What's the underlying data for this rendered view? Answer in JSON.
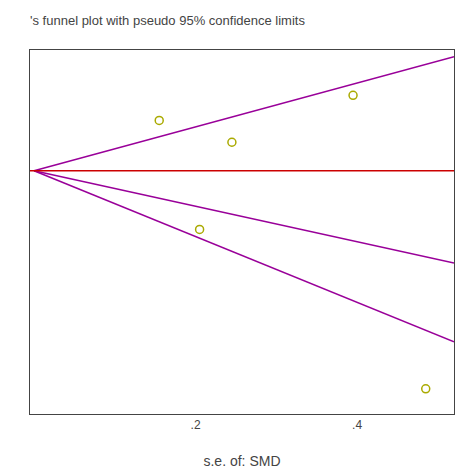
{
  "chart_data": {
    "type": "scatter",
    "title": "'s funnel plot with pseudo 95% confidence limits",
    "x_label": "s.e. of: SMD",
    "xlim": [
      -0.005,
      0.52
    ],
    "ylim": [
      -1.45,
      0.72
    ],
    "xticks": [
      {
        "value": 0.2,
        "label": ".2"
      },
      {
        "value": 0.4,
        "label": ".4"
      }
    ],
    "yticks": [],
    "tick_labels": "x",
    "grid": false,
    "series": [
      {
        "type": "line",
        "color": "#990099",
        "x": [
          0.0,
          0.52
        ],
        "values": [
          0.0,
          0.68
        ]
      },
      {
        "type": "line",
        "color": "#990099",
        "x": [
          0.0,
          0.52
        ],
        "values": [
          0.0,
          -0.55
        ]
      },
      {
        "type": "line",
        "color": "#990099",
        "x": [
          0.0,
          0.52
        ],
        "values": [
          0.0,
          -1.02
        ]
      },
      {
        "type": "hline",
        "color": "#cc0000",
        "values": [
          0.0
        ]
      },
      {
        "type": "scatter",
        "marker": "circle-open",
        "color": "#aaaa00",
        "x": [
          0.155,
          0.245,
          0.395,
          0.205,
          0.485
        ],
        "values": [
          0.3,
          0.17,
          0.45,
          -0.35,
          -1.3
        ]
      }
    ]
  }
}
